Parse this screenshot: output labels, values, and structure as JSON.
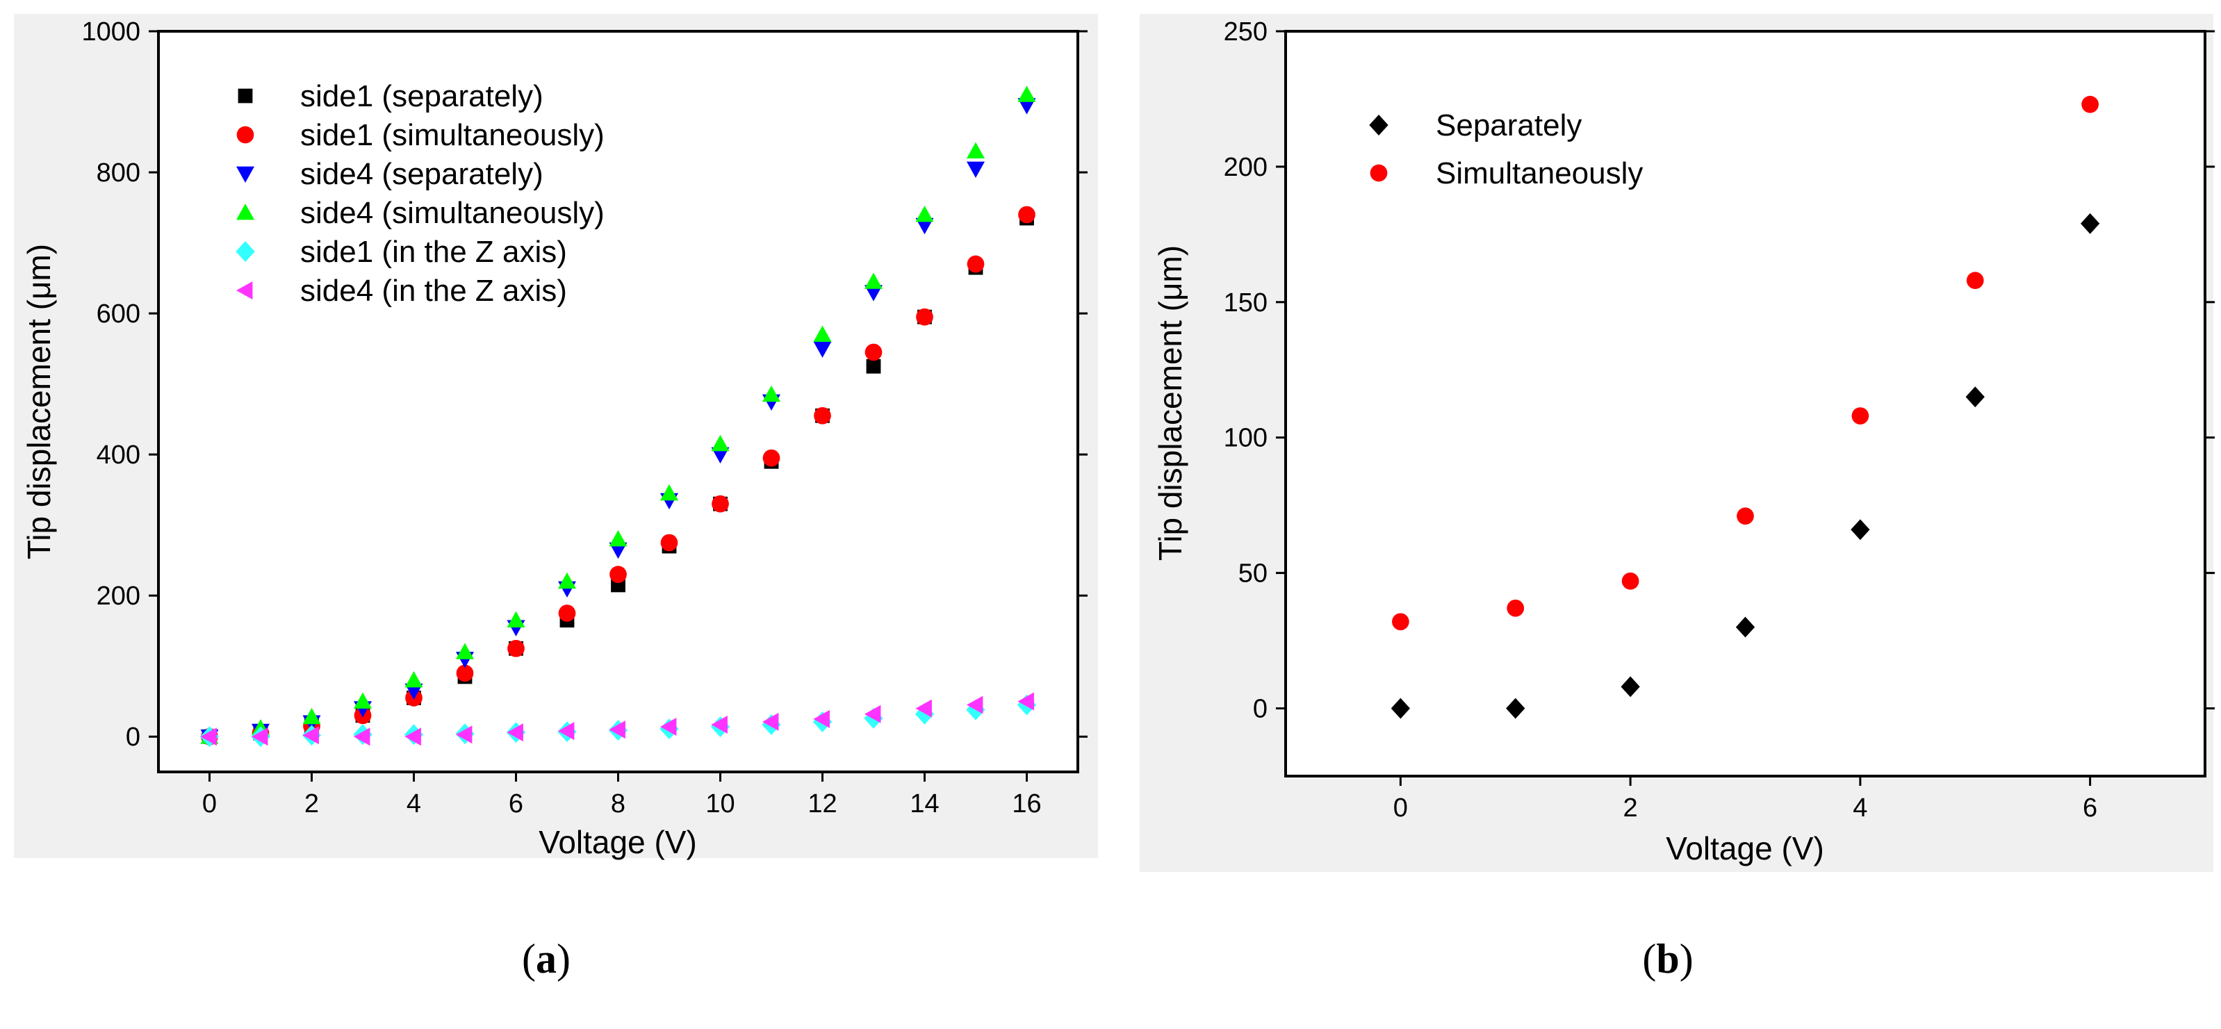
{
  "colors": {
    "black": "#000000",
    "red": "#ff0000",
    "blue": "#0000ff",
    "green": "#00ff00",
    "cyan": "#33ffff",
    "magenta": "#ff33ff",
    "bg_a": "#f0f0f0",
    "bg_b": "#f0f0f0"
  },
  "chart_data": [
    {
      "type": "scatter",
      "xlabel": "Voltage (V)",
      "ylabel": "Tip displacement (μm)",
      "xlim": [
        -1,
        17
      ],
      "ylim": [
        -50,
        1000
      ],
      "xticks": [
        0,
        2,
        4,
        6,
        8,
        10,
        12,
        14,
        16
      ],
      "yticks": [
        0,
        200,
        400,
        600,
        800,
        1000
      ],
      "grid": false,
      "legend_position": "top-left",
      "panel_label": {
        "open": "(",
        "letter": "a",
        "close": ")"
      },
      "series": [
        {
          "name": "side1 (separately)",
          "marker": "square",
          "color": "#000000",
          "x": [
            0,
            1,
            2,
            3,
            4,
            5,
            6,
            7,
            8,
            9,
            10,
            11,
            12,
            13,
            14,
            15,
            16
          ],
          "y": [
            0,
            5,
            15,
            30,
            55,
            85,
            125,
            165,
            215,
            270,
            330,
            390,
            455,
            525,
            595,
            665,
            735
          ]
        },
        {
          "name": "side1 (simultaneously)",
          "marker": "circle",
          "color": "#ff0000",
          "x": [
            0,
            1,
            2,
            3,
            4,
            5,
            6,
            7,
            8,
            9,
            10,
            11,
            12,
            13,
            14,
            15,
            16
          ],
          "y": [
            0,
            5,
            15,
            30,
            55,
            90,
            125,
            175,
            230,
            275,
            330,
            395,
            455,
            545,
            595,
            670,
            740
          ]
        },
        {
          "name": "side4 (separately)",
          "marker": "triangle-down",
          "color": "#0000ff",
          "x": [
            0,
            1,
            2,
            3,
            4,
            5,
            6,
            7,
            8,
            9,
            10,
            11,
            12,
            13,
            14,
            15,
            16
          ],
          "y": [
            0,
            8,
            20,
            40,
            65,
            110,
            155,
            210,
            265,
            335,
            400,
            475,
            550,
            630,
            725,
            805,
            895
          ]
        },
        {
          "name": "side4 (simultaneously)",
          "marker": "triangle-up",
          "color": "#00ff00",
          "x": [
            0,
            1,
            2,
            3,
            4,
            5,
            6,
            7,
            8,
            9,
            10,
            11,
            12,
            13,
            14,
            15,
            16
          ],
          "y": [
            0,
            12,
            28,
            50,
            80,
            120,
            165,
            220,
            280,
            345,
            415,
            485,
            570,
            645,
            740,
            830,
            910
          ]
        },
        {
          "name": "side1 (in the Z axis)",
          "marker": "diamond",
          "color": "#33ffff",
          "x": [
            0,
            1,
            2,
            3,
            4,
            5,
            6,
            7,
            8,
            9,
            10,
            11,
            12,
            13,
            14,
            15,
            16
          ],
          "y": [
            0,
            0,
            2,
            3,
            3,
            4,
            6,
            7,
            9,
            11,
            14,
            17,
            21,
            26,
            32,
            38,
            45
          ]
        },
        {
          "name": "side4 (in the Z axis)",
          "marker": "triangle-left",
          "color": "#ff33ff",
          "x": [
            0,
            1,
            2,
            3,
            4,
            5,
            6,
            7,
            8,
            9,
            10,
            11,
            12,
            13,
            14,
            15,
            16
          ],
          "y": [
            0,
            0,
            2,
            0,
            0,
            3,
            6,
            8,
            10,
            14,
            17,
            21,
            25,
            32,
            40,
            45,
            50
          ]
        }
      ]
    },
    {
      "type": "scatter",
      "xlabel": "Voltage (V)",
      "ylabel": "Tip displacement (μm)",
      "xlim": [
        -1,
        7
      ],
      "ylim": [
        -25,
        250
      ],
      "xticks": [
        0,
        2,
        4,
        6
      ],
      "yticks": [
        0,
        50,
        100,
        150,
        200,
        250
      ],
      "grid": false,
      "legend_position": "top-left",
      "panel_label": {
        "open": "(",
        "letter": "b",
        "close": ")"
      },
      "series": [
        {
          "name": "Separately",
          "marker": "diamond",
          "color": "#000000",
          "x": [
            0,
            1,
            2,
            3,
            4,
            5,
            6
          ],
          "y": [
            0,
            0,
            8,
            30,
            66,
            115,
            179
          ]
        },
        {
          "name": "Simultaneously",
          "marker": "circle",
          "color": "#ff0000",
          "x": [
            0,
            1,
            2,
            3,
            4,
            5,
            6
          ],
          "y": [
            32,
            37,
            47,
            71,
            108,
            158,
            223
          ]
        }
      ]
    }
  ]
}
